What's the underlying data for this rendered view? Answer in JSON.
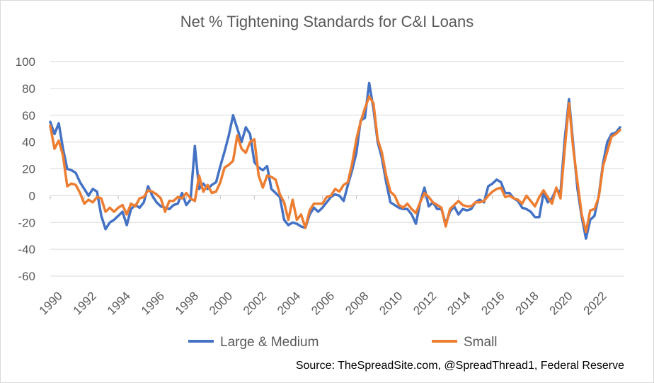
{
  "chart_data": {
    "type": "line",
    "title": "Net % Tightening Standards for C&I Loans",
    "xlabel": "",
    "ylabel": "",
    "ylim": [
      -60,
      100
    ],
    "yticks": [
      100,
      80,
      60,
      40,
      20,
      0,
      -20,
      -40,
      -60
    ],
    "xlim": [
      1990,
      2023.75
    ],
    "xticks": [
      "1990",
      "1992",
      "1994",
      "1996",
      "1998",
      "2000",
      "2002",
      "2004",
      "2006",
      "2008",
      "2010",
      "2012",
      "2014",
      "2016",
      "2018",
      "2020",
      "2022"
    ],
    "source": "Source: TheSpreadSite.com, @SpreadThread1, Federal Reserve",
    "series": [
      {
        "name": "Large & Medium",
        "color": "#4472c4",
        "points": [
          [
            1990.0,
            55
          ],
          [
            1990.25,
            46
          ],
          [
            1990.5,
            54
          ],
          [
            1990.75,
            35
          ],
          [
            1991.0,
            20
          ],
          [
            1991.25,
            19
          ],
          [
            1991.5,
            17
          ],
          [
            1991.75,
            10
          ],
          [
            1992.0,
            5
          ],
          [
            1992.25,
            0
          ],
          [
            1992.5,
            5
          ],
          [
            1992.75,
            3
          ],
          [
            1993.0,
            -15
          ],
          [
            1993.25,
            -25
          ],
          [
            1993.5,
            -20
          ],
          [
            1993.75,
            -18
          ],
          [
            1994.0,
            -15
          ],
          [
            1994.25,
            -12
          ],
          [
            1994.5,
            -22
          ],
          [
            1994.75,
            -10
          ],
          [
            1995.0,
            -7
          ],
          [
            1995.25,
            -9
          ],
          [
            1995.5,
            -5
          ],
          [
            1995.75,
            7
          ],
          [
            1996.0,
            0
          ],
          [
            1996.25,
            -5
          ],
          [
            1996.5,
            -8
          ],
          [
            1996.75,
            -9
          ],
          [
            1997.0,
            -10
          ],
          [
            1997.25,
            -7
          ],
          [
            1997.5,
            -6
          ],
          [
            1997.75,
            2
          ],
          [
            1998.0,
            -7
          ],
          [
            1998.25,
            -3
          ],
          [
            1998.5,
            37
          ],
          [
            1998.75,
            5
          ],
          [
            1999.0,
            9
          ],
          [
            1999.25,
            5
          ],
          [
            1999.5,
            8
          ],
          [
            1999.75,
            10
          ],
          [
            2000.0,
            22
          ],
          [
            2000.25,
            33
          ],
          [
            2000.5,
            45
          ],
          [
            2000.75,
            60
          ],
          [
            2001.0,
            50
          ],
          [
            2001.25,
            40
          ],
          [
            2001.5,
            51
          ],
          [
            2001.75,
            46
          ],
          [
            2002.0,
            25
          ],
          [
            2002.25,
            21
          ],
          [
            2002.5,
            19
          ],
          [
            2002.75,
            22
          ],
          [
            2003.0,
            5
          ],
          [
            2003.25,
            2
          ],
          [
            2003.5,
            -1
          ],
          [
            2003.75,
            -18
          ],
          [
            2004.0,
            -22
          ],
          [
            2004.25,
            -20
          ],
          [
            2004.5,
            -21
          ],
          [
            2004.75,
            -23
          ],
          [
            2005.0,
            -24
          ],
          [
            2005.25,
            -14
          ],
          [
            2005.5,
            -9
          ],
          [
            2005.75,
            -12
          ],
          [
            2006.0,
            -9
          ],
          [
            2006.25,
            -5
          ],
          [
            2006.5,
            -1
          ],
          [
            2006.75,
            1
          ],
          [
            2007.0,
            0
          ],
          [
            2007.25,
            -4
          ],
          [
            2007.5,
            8
          ],
          [
            2007.75,
            19
          ],
          [
            2008.0,
            32
          ],
          [
            2008.25,
            56
          ],
          [
            2008.5,
            58
          ],
          [
            2008.75,
            84
          ],
          [
            2009.0,
            65
          ],
          [
            2009.25,
            40
          ],
          [
            2009.5,
            28
          ],
          [
            2009.75,
            10
          ],
          [
            2010.0,
            -5
          ],
          [
            2010.25,
            -7
          ],
          [
            2010.5,
            -9
          ],
          [
            2010.75,
            -10
          ],
          [
            2011.0,
            -10
          ],
          [
            2011.25,
            -14
          ],
          [
            2011.5,
            -21
          ],
          [
            2011.75,
            -5
          ],
          [
            2012.0,
            6
          ],
          [
            2012.25,
            -8
          ],
          [
            2012.5,
            -5
          ],
          [
            2012.75,
            -10
          ],
          [
            2013.0,
            -10
          ],
          [
            2013.25,
            -21
          ],
          [
            2013.5,
            -12
          ],
          [
            2013.75,
            -8
          ],
          [
            2014.0,
            -14
          ],
          [
            2014.25,
            -10
          ],
          [
            2014.5,
            -11
          ],
          [
            2014.75,
            -10
          ],
          [
            2015.0,
            -5
          ],
          [
            2015.25,
            -3
          ],
          [
            2015.5,
            -5
          ],
          [
            2015.75,
            7
          ],
          [
            2016.0,
            9
          ],
          [
            2016.25,
            12
          ],
          [
            2016.5,
            10
          ],
          [
            2016.75,
            2
          ],
          [
            2017.0,
            2
          ],
          [
            2017.25,
            -2
          ],
          [
            2017.5,
            -4
          ],
          [
            2017.75,
            -9
          ],
          [
            2018.0,
            -10
          ],
          [
            2018.25,
            -12
          ],
          [
            2018.5,
            -16
          ],
          [
            2018.75,
            -16
          ],
          [
            2019.0,
            2
          ],
          [
            2019.25,
            -5
          ],
          [
            2019.5,
            -2
          ],
          [
            2019.75,
            5
          ],
          [
            2020.0,
            2
          ],
          [
            2020.25,
            42
          ],
          [
            2020.5,
            72
          ],
          [
            2020.75,
            38
          ],
          [
            2021.0,
            5
          ],
          [
            2021.25,
            -16
          ],
          [
            2021.5,
            -32
          ],
          [
            2021.75,
            -18
          ],
          [
            2022.0,
            -15
          ],
          [
            2022.25,
            0
          ],
          [
            2022.5,
            24
          ],
          [
            2022.75,
            40
          ],
          [
            2023.0,
            46
          ],
          [
            2023.25,
            47
          ],
          [
            2023.5,
            51
          ]
        ]
      },
      {
        "name": "Small",
        "color": "#ed7d31",
        "points": [
          [
            1990.0,
            52
          ],
          [
            1990.25,
            35
          ],
          [
            1990.5,
            41
          ],
          [
            1990.75,
            30
          ],
          [
            1991.0,
            7
          ],
          [
            1991.25,
            9
          ],
          [
            1991.5,
            8
          ],
          [
            1991.75,
            2
          ],
          [
            1992.0,
            -6
          ],
          [
            1992.25,
            -3
          ],
          [
            1992.5,
            -5
          ],
          [
            1992.75,
            -1
          ],
          [
            1993.0,
            -2
          ],
          [
            1993.25,
            -12
          ],
          [
            1993.5,
            -9
          ],
          [
            1993.75,
            -12
          ],
          [
            1994.0,
            -9
          ],
          [
            1994.25,
            -7
          ],
          [
            1994.5,
            -14
          ],
          [
            1994.75,
            -6
          ],
          [
            1995.0,
            -8
          ],
          [
            1995.25,
            -2
          ],
          [
            1995.5,
            -1
          ],
          [
            1995.75,
            4
          ],
          [
            1996.0,
            3
          ],
          [
            1996.25,
            1
          ],
          [
            1996.5,
            -2
          ],
          [
            1996.75,
            -12
          ],
          [
            1997.0,
            -4
          ],
          [
            1997.25,
            -4
          ],
          [
            1997.5,
            -1
          ],
          [
            1997.75,
            -2
          ],
          [
            1998.0,
            2
          ],
          [
            1998.25,
            -2
          ],
          [
            1998.5,
            -4
          ],
          [
            1998.75,
            15
          ],
          [
            1999.0,
            3
          ],
          [
            1999.25,
            8
          ],
          [
            1999.5,
            2
          ],
          [
            1999.75,
            3
          ],
          [
            2000.0,
            10
          ],
          [
            2000.25,
            21
          ],
          [
            2000.5,
            23
          ],
          [
            2000.75,
            26
          ],
          [
            2001.0,
            45
          ],
          [
            2001.25,
            35
          ],
          [
            2001.5,
            32
          ],
          [
            2001.75,
            40
          ],
          [
            2002.0,
            42
          ],
          [
            2002.25,
            15
          ],
          [
            2002.5,
            6
          ],
          [
            2002.75,
            15
          ],
          [
            2003.0,
            14
          ],
          [
            2003.25,
            12
          ],
          [
            2003.5,
            1
          ],
          [
            2003.75,
            -5
          ],
          [
            2004.0,
            -18
          ],
          [
            2004.25,
            -3
          ],
          [
            2004.5,
            -18
          ],
          [
            2004.75,
            -14
          ],
          [
            2005.0,
            -24
          ],
          [
            2005.25,
            -11
          ],
          [
            2005.5,
            -6
          ],
          [
            2005.75,
            -6
          ],
          [
            2006.0,
            -6
          ],
          [
            2006.25,
            -1
          ],
          [
            2006.5,
            0
          ],
          [
            2006.75,
            5
          ],
          [
            2007.0,
            3
          ],
          [
            2007.25,
            8
          ],
          [
            2007.5,
            10
          ],
          [
            2007.75,
            24
          ],
          [
            2008.0,
            42
          ],
          [
            2008.25,
            55
          ],
          [
            2008.5,
            65
          ],
          [
            2008.75,
            74
          ],
          [
            2009.0,
            69
          ],
          [
            2009.25,
            42
          ],
          [
            2009.5,
            32
          ],
          [
            2009.75,
            15
          ],
          [
            2010.0,
            3
          ],
          [
            2010.25,
            0
          ],
          [
            2010.5,
            -7
          ],
          [
            2010.75,
            -9
          ],
          [
            2011.0,
            -6
          ],
          [
            2011.25,
            -10
          ],
          [
            2011.5,
            -13
          ],
          [
            2011.75,
            -5
          ],
          [
            2012.0,
            2
          ],
          [
            2012.25,
            -1
          ],
          [
            2012.5,
            -5
          ],
          [
            2012.75,
            -7
          ],
          [
            2013.0,
            -9
          ],
          [
            2013.25,
            -23
          ],
          [
            2013.5,
            -10
          ],
          [
            2013.75,
            -7
          ],
          [
            2014.0,
            -4
          ],
          [
            2014.25,
            -7
          ],
          [
            2014.5,
            -8
          ],
          [
            2014.75,
            -8
          ],
          [
            2015.0,
            -5
          ],
          [
            2015.25,
            -5
          ],
          [
            2015.5,
            -4
          ],
          [
            2015.75,
            0
          ],
          [
            2016.0,
            3
          ],
          [
            2016.25,
            5
          ],
          [
            2016.5,
            6
          ],
          [
            2016.75,
            -1
          ],
          [
            2017.0,
            0
          ],
          [
            2017.25,
            -2
          ],
          [
            2017.5,
            -3
          ],
          [
            2017.75,
            -6
          ],
          [
            2018.0,
            0
          ],
          [
            2018.25,
            -4
          ],
          [
            2018.5,
            -8
          ],
          [
            2018.75,
            -1
          ],
          [
            2019.0,
            4
          ],
          [
            2019.25,
            -1
          ],
          [
            2019.5,
            -6
          ],
          [
            2019.75,
            6
          ],
          [
            2020.0,
            -2
          ],
          [
            2020.25,
            35
          ],
          [
            2020.5,
            69
          ],
          [
            2020.75,
            35
          ],
          [
            2021.0,
            10
          ],
          [
            2021.25,
            -14
          ],
          [
            2021.5,
            -27
          ],
          [
            2021.75,
            -11
          ],
          [
            2022.0,
            -10
          ],
          [
            2022.25,
            -1
          ],
          [
            2022.5,
            22
          ],
          [
            2022.75,
            33
          ],
          [
            2023.0,
            44
          ],
          [
            2023.25,
            46
          ],
          [
            2023.5,
            49
          ]
        ]
      }
    ]
  }
}
